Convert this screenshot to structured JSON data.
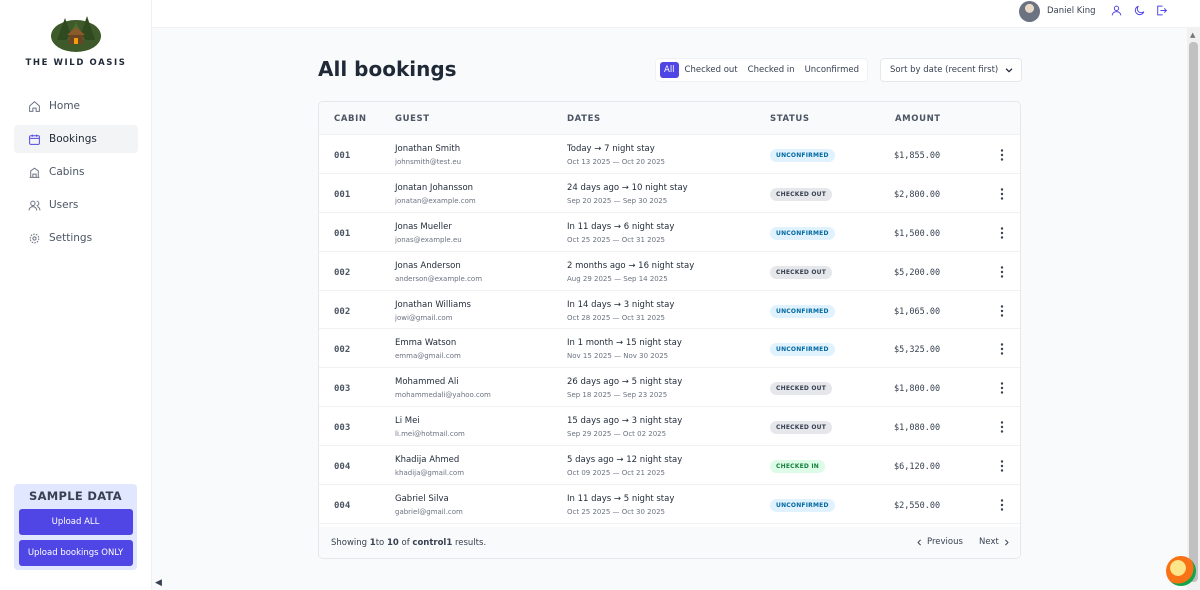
{
  "brand": {
    "name": "THE WILD OASIS"
  },
  "nav": [
    {
      "label": "Home",
      "icon": "home-icon"
    },
    {
      "label": "Bookings",
      "icon": "calendar-icon",
      "active": true
    },
    {
      "label": "Cabins",
      "icon": "building-icon"
    },
    {
      "label": "Users",
      "icon": "users-icon"
    },
    {
      "label": "Settings",
      "icon": "gear-icon"
    }
  ],
  "sample": {
    "title": "SAMPLE DATA",
    "upload_all": "Upload ALL",
    "upload_bookings": "Upload bookings ONLY"
  },
  "header": {
    "user_name": "Daniel King"
  },
  "main": {
    "title": "All bookings",
    "filters": [
      "All",
      "Checked out",
      "Checked in",
      "Unconfirmed"
    ],
    "active_filter": "All",
    "sort_selected": "Sort by date (recent first)"
  },
  "table": {
    "columns": [
      "CABIN",
      "GUEST",
      "DATES",
      "STATUS",
      "AMOUNT"
    ],
    "rows": [
      {
        "cabin": "001",
        "guest": "Jonathan Smith",
        "email": "johnsmith@test.eu",
        "when": "Today → 7 night stay",
        "range": "Oct 13 2025 — Oct 20 2025",
        "status": "UNCONFIRMED",
        "amount": "$1,855.00"
      },
      {
        "cabin": "001",
        "guest": "Jonatan Johansson",
        "email": "jonatan@example.com",
        "when": "24 days ago → 10 night stay",
        "range": "Sep 20 2025 — Sep 30 2025",
        "status": "CHECKED OUT",
        "amount": "$2,800.00"
      },
      {
        "cabin": "001",
        "guest": "Jonas Mueller",
        "email": "jonas@example.eu",
        "when": "In 11 days → 6 night stay",
        "range": "Oct 25 2025 — Oct 31 2025",
        "status": "UNCONFIRMED",
        "amount": "$1,500.00"
      },
      {
        "cabin": "002",
        "guest": "Jonas Anderson",
        "email": "anderson@example.com",
        "when": "2 months ago → 16 night stay",
        "range": "Aug 29 2025 — Sep 14 2025",
        "status": "CHECKED OUT",
        "amount": "$5,200.00"
      },
      {
        "cabin": "002",
        "guest": "Jonathan Williams",
        "email": "jowi@gmail.com",
        "when": "In 14 days → 3 night stay",
        "range": "Oct 28 2025 — Oct 31 2025",
        "status": "UNCONFIRMED",
        "amount": "$1,065.00"
      },
      {
        "cabin": "002",
        "guest": "Emma Watson",
        "email": "emma@gmail.com",
        "when": "In 1 month → 15 night stay",
        "range": "Nov 15 2025 — Nov 30 2025",
        "status": "UNCONFIRMED",
        "amount": "$5,325.00"
      },
      {
        "cabin": "003",
        "guest": "Mohammed Ali",
        "email": "mohammedali@yahoo.com",
        "when": "26 days ago → 5 night stay",
        "range": "Sep 18 2025 — Sep 23 2025",
        "status": "CHECKED OUT",
        "amount": "$1,800.00"
      },
      {
        "cabin": "003",
        "guest": "Li Mei",
        "email": "li.mei@hotmail.com",
        "when": "15 days ago → 3 night stay",
        "range": "Sep 29 2025 — Oct 02 2025",
        "status": "CHECKED OUT",
        "amount": "$1,080.00"
      },
      {
        "cabin": "004",
        "guest": "Khadija Ahmed",
        "email": "khadija@gmail.com",
        "when": "5 days ago → 12 night stay",
        "range": "Oct 09 2025 — Oct 21 2025",
        "status": "CHECKED IN",
        "amount": "$6,120.00"
      },
      {
        "cabin": "004",
        "guest": "Gabriel Silva",
        "email": "gabriel@gmail.com",
        "when": "In 11 days → 5 night stay",
        "range": "Oct 25 2025 — Oct 30 2025",
        "status": "UNCONFIRMED",
        "amount": "$2,550.00"
      }
    ]
  },
  "footer": {
    "showing": "Showing ",
    "from": "1",
    "to_word": "to ",
    "to": "10",
    "of_word": " of ",
    "total": "control1",
    "results_word": " results.",
    "previous": "Previous",
    "next": "Next"
  },
  "colors": {
    "accent": "#4f46e5",
    "unconfirmed_bg": "#e0f2fe",
    "checked_out_bg": "#e5e7eb",
    "checked_in_bg": "#dcfce7"
  }
}
